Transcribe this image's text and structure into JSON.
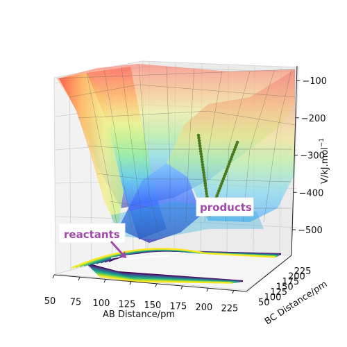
{
  "chart_data": {
    "type": "surface3d",
    "title": "",
    "xlabel": "AB Distance/pm",
    "ylabel": "BC Distance/pm",
    "zlabel": "V/kJ.mol$^{-1}$",
    "zlabel_text": "V/kJ.mol",
    "zlabel_exp": "−1",
    "x_ticks": [
      "50",
      "75",
      "100",
      "125",
      "150",
      "175",
      "200",
      "225"
    ],
    "y_ticks": [
      "50",
      "100",
      "150",
      "200",
      "225"
    ],
    "y_ticks_display": [
      "50",
      "100",
      "125",
      "150",
      "175",
      "200",
      "225"
    ],
    "z_ticks": [
      "−100",
      "−200",
      "−300",
      "−400",
      "−500"
    ],
    "xlim": [
      50,
      240
    ],
    "ylim": [
      50,
      240
    ],
    "zlim": [
      -560,
      -80
    ],
    "grid": true,
    "annotations": [
      {
        "text": "reactants"
      },
      {
        "text": "products"
      }
    ],
    "trajectory": {
      "color": "#4a7a1e"
    },
    "colormap_surface": "jet",
    "colormap_contour": "viridis"
  }
}
